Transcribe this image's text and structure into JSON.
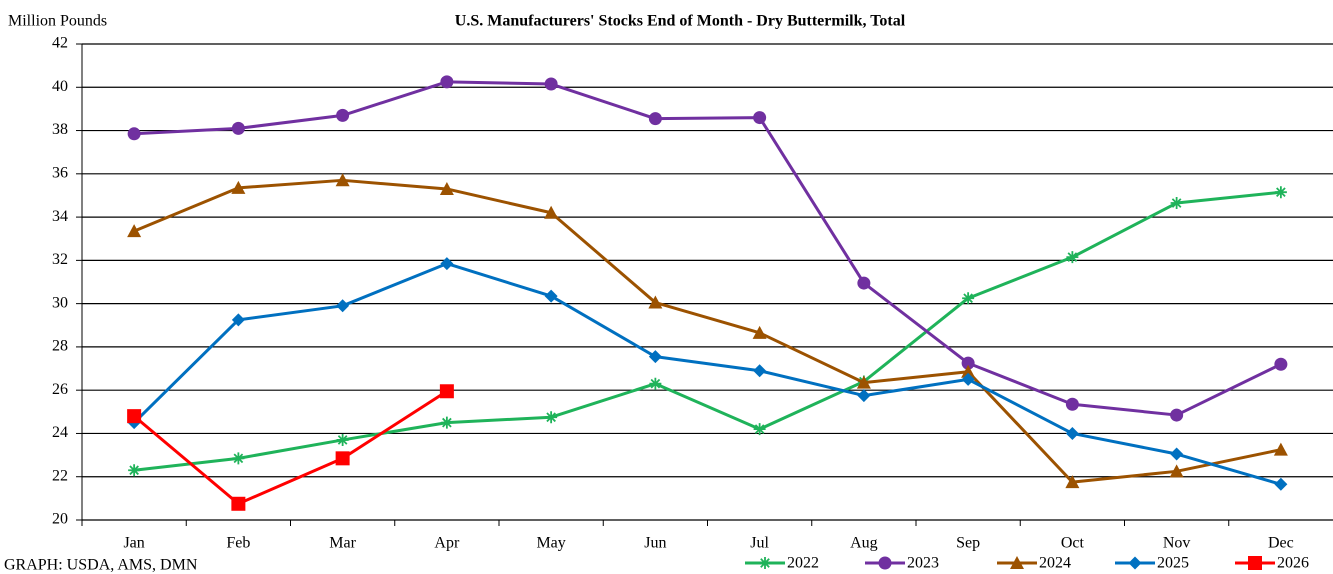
{
  "chart_data": {
    "type": "line",
    "title": "U.S. Manufacturers' Stocks End of Month - Dry Buttermilk, Total",
    "y_label": "Million Pounds",
    "source": "GRAPH: USDA, AMS, DMN",
    "categories": [
      "Jan",
      "Feb",
      "Mar",
      "Apr",
      "May",
      "Jun",
      "Jul",
      "Aug",
      "Sep",
      "Oct",
      "Nov",
      "Dec"
    ],
    "ylim": [
      20,
      42
    ],
    "yticks": [
      20,
      22,
      24,
      26,
      28,
      30,
      32,
      34,
      36,
      38,
      40,
      42
    ],
    "grid": true,
    "legend": "bottom-right",
    "series": [
      {
        "name": "2022",
        "color": "#1fb35a",
        "marker": "asterisk",
        "values": [
          22.3,
          22.85,
          23.7,
          24.5,
          24.75,
          26.3,
          24.2,
          26.4,
          30.25,
          32.15,
          34.65,
          35.15
        ]
      },
      {
        "name": "2023",
        "color": "#7030a0",
        "marker": "circle",
        "values": [
          37.85,
          38.1,
          38.7,
          40.25,
          40.15,
          38.55,
          38.6,
          30.95,
          27.25,
          25.35,
          24.85,
          27.2
        ]
      },
      {
        "name": "2024",
        "color": "#9c5200",
        "marker": "triangle",
        "values": [
          33.35,
          35.35,
          35.7,
          35.3,
          34.2,
          30.05,
          28.65,
          26.35,
          26.85,
          21.75,
          22.25,
          23.25
        ]
      },
      {
        "name": "2025",
        "color": "#0070c0",
        "marker": "diamond",
        "values": [
          24.5,
          29.25,
          29.9,
          31.85,
          30.35,
          27.55,
          26.9,
          25.75,
          26.5,
          24.0,
          23.05,
          21.65
        ]
      },
      {
        "name": "2026",
        "color": "#ff0000",
        "marker": "square",
        "values": [
          24.8,
          20.75,
          22.85,
          25.95,
          null,
          null,
          null,
          null,
          null,
          null,
          null,
          null
        ]
      }
    ]
  }
}
